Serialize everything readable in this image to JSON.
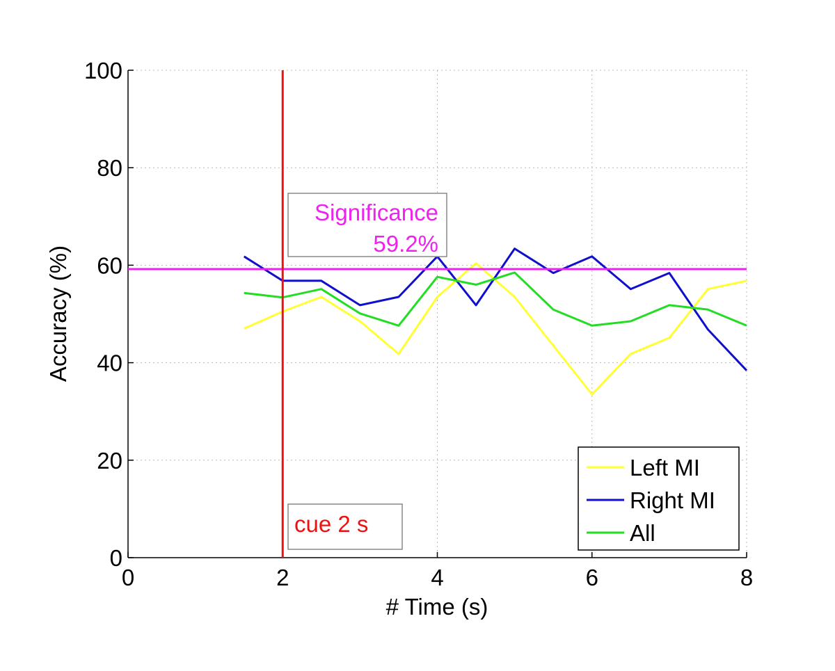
{
  "chart_data": {
    "type": "line",
    "title": "",
    "xlabel": "# Time (s)",
    "ylabel": "Accuracy (%)",
    "xlim": [
      0,
      8
    ],
    "ylim": [
      0,
      100
    ],
    "xticks": [
      0,
      2,
      4,
      6,
      8
    ],
    "yticks": [
      0,
      20,
      40,
      60,
      80,
      100
    ],
    "grid": true,
    "x": [
      1.5,
      2,
      2.5,
      3,
      3.5,
      4,
      4.5,
      5,
      5.5,
      6,
      6.5,
      7,
      7.5,
      8
    ],
    "series": [
      {
        "name": "Left MI",
        "color": "#ffff33",
        "values": [
          47,
          50.5,
          53.5,
          48.5,
          41.8,
          53.5,
          60.4,
          53.5,
          43.5,
          33.5,
          41.8,
          45.1,
          55.1,
          56.8
        ]
      },
      {
        "name": "Right MI",
        "color": "#1010cc",
        "values": [
          61.8,
          56.8,
          56.8,
          51.8,
          53.5,
          61.8,
          51.8,
          63.4,
          58.4,
          61.8,
          55.1,
          58.4,
          46.8,
          38.4
        ]
      },
      {
        "name": "All",
        "color": "#22dd22",
        "values": [
          54.3,
          53.4,
          55.1,
          50.1,
          47.6,
          57.6,
          56.0,
          58.5,
          50.9,
          47.6,
          48.5,
          51.8,
          50.9,
          47.6
        ]
      }
    ],
    "reference_lines": {
      "vertical": {
        "x": 2,
        "color": "#ee1111",
        "label": "cue 2 s"
      },
      "horizontal": {
        "y": 59.2,
        "color": "#ee22ee",
        "label_line1": "Significance",
        "label_line2": "59.2%"
      }
    },
    "legend_position": "bottom-right"
  }
}
